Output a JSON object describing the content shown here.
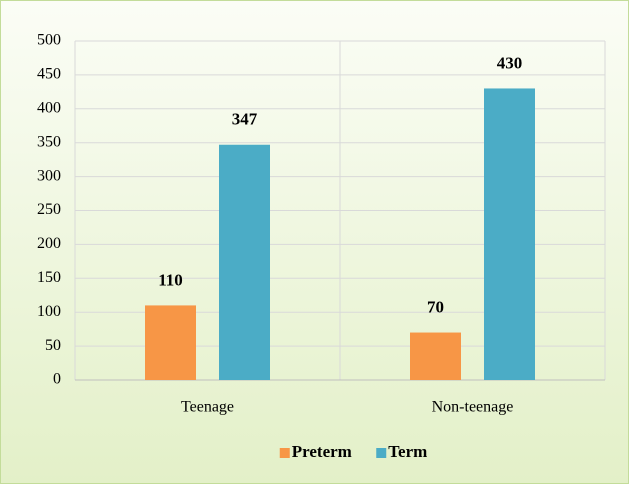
{
  "chart_data": {
    "type": "bar",
    "categories": [
      "Teenage",
      "Non-teenage"
    ],
    "series": [
      {
        "name": "Preterm",
        "color": "#f79646",
        "values": [
          110,
          70
        ]
      },
      {
        "name": "Term",
        "color": "#4bacc6",
        "values": [
          347,
          430
        ]
      }
    ],
    "ylim": [
      0,
      500
    ],
    "yticks": [
      0,
      50,
      100,
      150,
      200,
      250,
      300,
      350,
      400,
      450,
      500
    ],
    "grid": true,
    "legend": "bottom"
  }
}
